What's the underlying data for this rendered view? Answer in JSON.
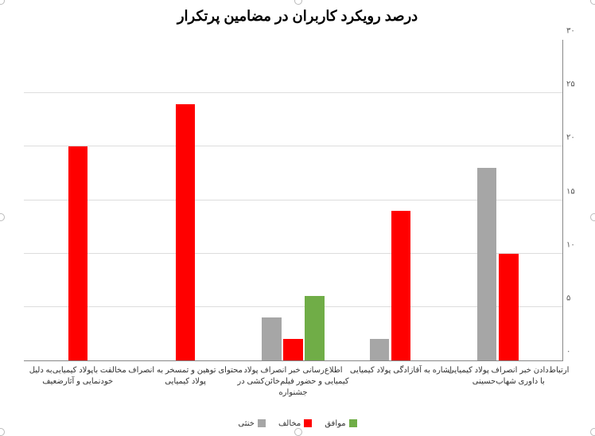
{
  "chart": {
    "type": "bar",
    "title": "درصد رویکرد کاربران در مضامین پرتکرار",
    "title_fontsize": 18,
    "title_weight": "bold",
    "background_color": "#ffffff",
    "grid_color": "#dddddd",
    "axis_color": "#888888",
    "ylim": [
      0,
      30
    ],
    "ytick_step": 5,
    "yticks": [
      0,
      5,
      10,
      15,
      20,
      25,
      30
    ],
    "ytick_labels": [
      "۰",
      "۵",
      "۱۰",
      "۱۵",
      "۲۰",
      "۲۵",
      "۳۰"
    ],
    "ylabel_fontsize": 10,
    "xlabel_fontsize": 10,
    "series": [
      {
        "key": "agree",
        "label": "موافق",
        "color": "#70ad47"
      },
      {
        "key": "disagree",
        "label": "مخالف",
        "color": "#ff0000"
      },
      {
        "key": "neutral",
        "label": "خنثی",
        "color": "#a6a6a6"
      }
    ],
    "categories": [
      {
        "label": "ارتباط‌دادن خبر انصراف پولاد کیمیایی با داوری شهاب‌حسینی",
        "values": {
          "agree": 0,
          "disagree": 10,
          "neutral": 18
        }
      },
      {
        "label": "اشاره به آقازادگی پولاد کیمیایی",
        "values": {
          "agree": 0,
          "disagree": 14,
          "neutral": 2
        }
      },
      {
        "label": "اطلاع‌رسانی خبر انصراف پولاد کیمیایی و حضور فیلم‌خائن‌کشی در جشنواره",
        "values": {
          "agree": 6,
          "disagree": 2,
          "neutral": 4
        }
      },
      {
        "label": "محتوای توهین و تمسخر به انصراف پولاد کیمیایی",
        "values": {
          "agree": 0,
          "disagree": 24,
          "neutral": 0
        }
      },
      {
        "label": "مخالفت باپولاد کیمیایی‌به دلیل خودنمایی و آثارضعیف",
        "values": {
          "agree": 0,
          "disagree": 20,
          "neutral": 0
        }
      }
    ],
    "bar_width_ratio": 0.18,
    "bar_gap_ratio": 0.02,
    "legend_position": "bottom",
    "selection_handles": true
  }
}
